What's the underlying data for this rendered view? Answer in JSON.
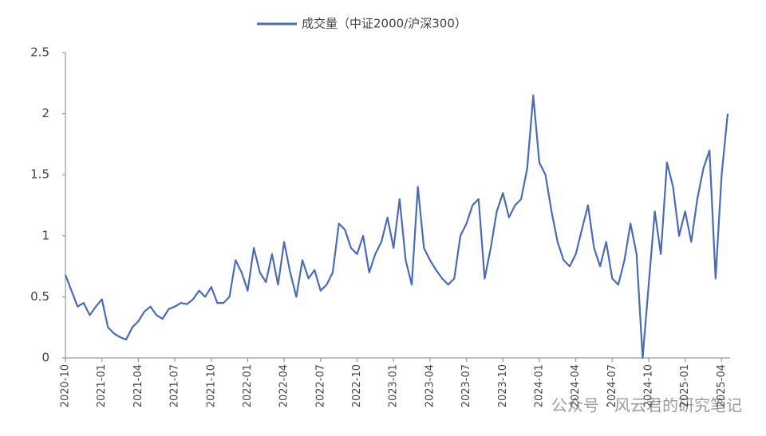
{
  "chart_data": {
    "type": "line",
    "categories": [
      "2020-10",
      null,
      null,
      null,
      null,
      null,
      "2021-01",
      null,
      null,
      null,
      null,
      null,
      "2021-04",
      null,
      null,
      null,
      null,
      null,
      "2021-07",
      null,
      null,
      null,
      null,
      null,
      "2021-10",
      null,
      null,
      null,
      null,
      null,
      "2022-01",
      null,
      null,
      null,
      null,
      null,
      "2022-04",
      null,
      null,
      null,
      null,
      null,
      "2022-07",
      null,
      null,
      null,
      null,
      null,
      "2022-10",
      null,
      null,
      null,
      null,
      null,
      "2023-01",
      null,
      null,
      null,
      null,
      null,
      "2023-04",
      null,
      null,
      null,
      null,
      null,
      "2023-07",
      null,
      null,
      null,
      null,
      null,
      "2023-10",
      null,
      null,
      null,
      null,
      null,
      "2024-01",
      null,
      null,
      null,
      null,
      null,
      "2024-04",
      null,
      null,
      null,
      null,
      null,
      "2024-07",
      null,
      null,
      null,
      null,
      null,
      "2024-10",
      null,
      null,
      null,
      null,
      null,
      "2025-01",
      null,
      null,
      null,
      null,
      null,
      "2025-04",
      null
    ],
    "series": [
      {
        "name": "成交量（中证2000/沪深300）",
        "color": "#4a6cb3",
        "values": [
          0.68,
          0.55,
          0.42,
          0.45,
          0.35,
          0.42,
          0.48,
          0.25,
          0.2,
          0.17,
          0.15,
          0.25,
          0.3,
          0.38,
          0.42,
          0.35,
          0.32,
          0.4,
          0.42,
          0.45,
          0.44,
          0.48,
          0.55,
          0.5,
          0.58,
          0.45,
          0.45,
          0.5,
          0.8,
          0.7,
          0.55,
          0.9,
          0.7,
          0.62,
          0.85,
          0.6,
          0.95,
          0.7,
          0.5,
          0.8,
          0.65,
          0.72,
          0.55,
          0.6,
          0.7,
          1.1,
          1.05,
          0.9,
          0.85,
          1.0,
          0.7,
          0.85,
          0.95,
          1.15,
          0.9,
          1.3,
          0.8,
          0.6,
          1.4,
          0.9,
          0.8,
          0.72,
          0.65,
          0.6,
          0.65,
          1.0,
          1.1,
          1.25,
          1.3,
          0.65,
          0.9,
          1.2,
          1.35,
          1.15,
          1.25,
          1.3,
          1.55,
          2.15,
          1.6,
          1.5,
          1.2,
          0.95,
          0.8,
          0.75,
          0.85,
          1.05,
          1.25,
          0.9,
          0.75,
          0.95,
          0.65,
          0.6,
          0.8,
          1.1,
          0.85,
          0.0,
          0.6,
          1.2,
          0.85,
          1.6,
          1.4,
          1.0,
          1.2,
          0.95,
          1.3,
          1.55,
          1.7,
          0.65,
          1.5,
          2.0
        ]
      }
    ],
    "ylim": [
      0,
      2.5
    ],
    "yticks": [
      0,
      0.5,
      1,
      1.5,
      2,
      2.5
    ],
    "grid": false,
    "watermark": "公众号 · 风云君的研究笔记"
  }
}
